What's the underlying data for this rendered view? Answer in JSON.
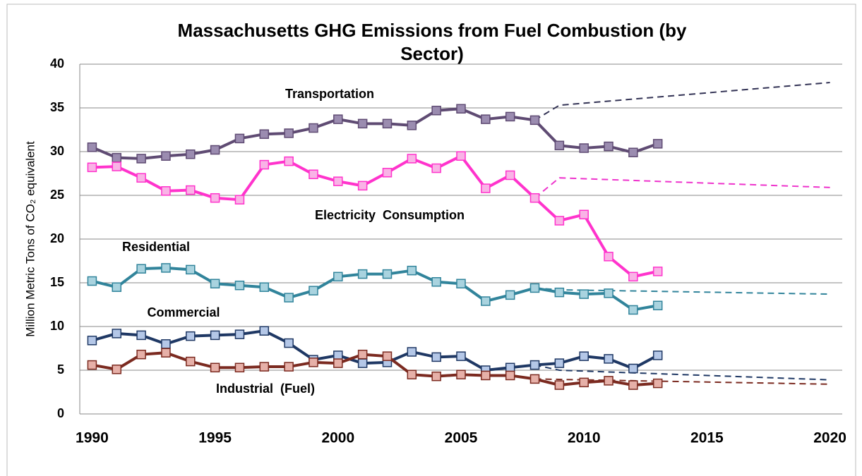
{
  "chart_data": {
    "type": "line",
    "title": "Massachusetts GHG Emissions from Fuel Combustion (by Sector)",
    "y_label": "Million Metric Tons of CO₂ equivalent",
    "x": [
      1990,
      1991,
      1992,
      1993,
      1994,
      1995,
      1996,
      1997,
      1998,
      1999,
      2000,
      2001,
      2002,
      2003,
      2004,
      2005,
      2006,
      2007,
      2008,
      2009,
      2010,
      2011,
      2012,
      2013
    ],
    "xlim": [
      1989.5,
      2020.5
    ],
    "xticks": [
      1990,
      1995,
      2000,
      2005,
      2010,
      2015,
      2020
    ],
    "ylim": [
      0,
      40
    ],
    "yticks": [
      0,
      5,
      10,
      15,
      20,
      25,
      30,
      35,
      40
    ],
    "grid": true,
    "series": [
      {
        "name": "Transportation",
        "color": "#5f4b73",
        "marker_color": "#9b8cb0",
        "values": [
          30.5,
          29.3,
          29.2,
          29.5,
          29.7,
          30.2,
          31.5,
          32.0,
          32.1,
          32.7,
          33.7,
          33.2,
          33.2,
          33.0,
          34.7,
          34.9,
          33.7,
          34.0,
          33.6,
          30.7,
          30.4,
          30.6,
          29.9,
          30.9
        ],
        "projection": {
          "color": "#333355",
          "x": [
            2008,
            2009,
            2020
          ],
          "values": [
            33.6,
            35.3,
            37.9
          ]
        }
      },
      {
        "name": "Electricity  Consumption",
        "color": "#ff33cc",
        "marker_color": "#f9b3e6",
        "values": [
          28.2,
          28.3,
          27.0,
          25.5,
          25.6,
          24.7,
          24.5,
          28.5,
          28.9,
          27.4,
          26.6,
          26.1,
          27.6,
          29.2,
          28.1,
          29.5,
          25.8,
          27.3,
          24.7,
          22.1,
          22.8,
          18.0,
          15.7,
          16.3
        ],
        "projection": {
          "color": "#ee33cc",
          "x": [
            2008,
            2009,
            2020
          ],
          "values": [
            24.7,
            27.0,
            25.9
          ]
        }
      },
      {
        "name": "Residential",
        "color": "#31849b",
        "marker_color": "#a9d3df",
        "values": [
          15.2,
          14.5,
          16.6,
          16.7,
          16.5,
          14.9,
          14.7,
          14.5,
          13.3,
          14.1,
          15.7,
          16.0,
          16.0,
          16.4,
          15.1,
          14.9,
          12.9,
          13.6,
          14.4,
          13.9,
          13.7,
          13.8,
          11.9,
          12.4
        ],
        "projection": {
          "color": "#31849b",
          "x": [
            2008,
            2009,
            2020
          ],
          "values": [
            14.4,
            14.2,
            13.7
          ]
        }
      },
      {
        "name": "Commercial",
        "color": "#1f3864",
        "marker_color": "#b4c7e7",
        "values": [
          8.4,
          9.2,
          9.0,
          8.0,
          8.9,
          9.0,
          9.1,
          9.5,
          8.1,
          6.2,
          6.7,
          5.8,
          5.9,
          7.1,
          6.5,
          6.6,
          5.0,
          5.3,
          5.6,
          5.8,
          6.6,
          6.3,
          5.2,
          6.7
        ],
        "projection": {
          "color": "#1f3864",
          "x": [
            2008,
            2009,
            2020
          ],
          "values": [
            5.6,
            5.0,
            3.9
          ]
        }
      },
      {
        "name": "Industrial  (Fuel)",
        "color": "#7b2a20",
        "marker_color": "#e6b0a8",
        "values": [
          5.6,
          5.1,
          6.8,
          7.0,
          6.0,
          5.3,
          5.3,
          5.4,
          5.4,
          5.9,
          5.8,
          6.8,
          6.6,
          4.5,
          4.3,
          4.5,
          4.4,
          4.4,
          4.0,
          3.3,
          3.6,
          3.8,
          3.3,
          3.5
        ],
        "projection": {
          "color": "#7b2a20",
          "x": [
            2008,
            2020
          ],
          "values": [
            4.0,
            3.4
          ]
        }
      }
    ]
  }
}
